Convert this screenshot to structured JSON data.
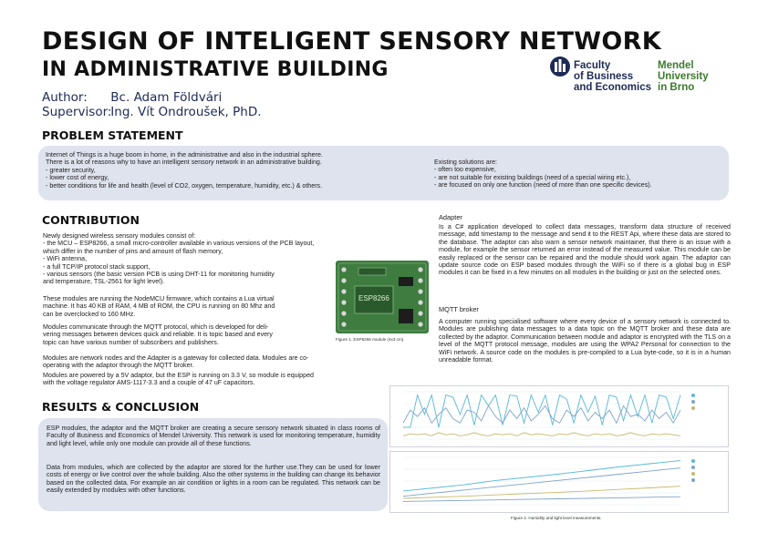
{
  "header": {
    "title_line1": "DESIGN OF INTELIGENT SENSORY NETWORK",
    "title_line2": "IN ADMINISTRATIVE BUILDING",
    "author_key": "Author:",
    "author_val": "Bc. Adam Földvári",
    "supervisor_key": "Supervisor:",
    "supervisor_val": "Ing. Vít Ondroušek, PhD."
  },
  "logos": {
    "faculty": [
      "Faculty",
      "of Business",
      "and Economics"
    ],
    "university": [
      "Mendel",
      "University",
      "in Brno"
    ]
  },
  "problem": {
    "heading": "PROBLEM STATEMENT",
    "left": [
      "Internet of Things is a huge boom in home, in the administrative and also in the industrial sphere.",
      "There is a lot of reasons why to have an intelligent sensory network in an administrative building.",
      "- greater security,",
      "- lower cost of energy,",
      "- better conditions for life and health (level of CO2, oxygen, temperature, humidity, etc.) & others."
    ],
    "right": [
      "Existing solutions are:",
      "- often too expensive,",
      "- are not suitable for existing buildings (need of a special wiring etc.),",
      "- are focused on only one function (need of more than one specific devices)."
    ]
  },
  "contribution": {
    "heading": "CONTRIBUTION",
    "list1": [
      "Newly designed wireless sensory modules consist of:",
      "- the MCU – ESP8266, a small micro-controller available in various versions of the PCB layout,",
      "which differ in the number of pins and amount of flash memory,",
      "- WiFi antenna,",
      "- a full TCP/IP protocol stack support,",
      "- various sensors (the basic version PCB is using DHT-11 for monitoring humidity",
      "and temperature, TSL-2561 for light level)."
    ],
    "para2": [
      "These modules are running the NodeMCU firmware, which contains a Lua virtual",
      "machine. It has 40 KB of RAM, 4 MB of ROM, the CPU is running on 80 Mhz and",
      "can be overclocked to 160 MHz."
    ],
    "para3": [
      "Modules communicate through the MQTT protocol, which is developed for deli-",
      "vering messages between devices quick and reliable. It is topic based and every",
      "topic can have various number of subscribers and publishers."
    ],
    "para4": [
      "Modules are network nodes and the Adapter is a gateway for collected data. Modules are co-",
      "operating with the adaptor through the MQTT broker."
    ],
    "para5": [
      "Modules are powered by a 5V adaptor, but the ESP is running on 3.3 V, so module is equipped",
      "with the voltage regulator AMS-1117-3.3 and a couple of 47 uF capacitors."
    ],
    "figure_caption": "Figure 1. ESP8266 module (4x3 cm).",
    "pcb_label": "ESP8266"
  },
  "results": {
    "heading": "RESULTS & CONCLUSION",
    "para1": "ESP modules, the adaptor and the MQTT broker are creating a secure sensory network situated in class rooms of Faculty of Business and Economics of Mendel University. This network is used for monitoring temperature, humidity and light level, while only one module can provide all of these functions.",
    "para2": "Data from modules, which are collected by the adaptor are stored for the further use.They can be used for lower costs of energy or live control over the whole building. Also the other systems in the building can change its behavior based on the collected data. For example an air condition or lights in a room can be regulated. This network can be easily extended by modules with other functions."
  },
  "adapter": {
    "heading": "Adapter",
    "text": "Is a C# application developed to collect data messages, transform data structure of received message, add timestamp to the message and send it to the REST Api, where these data are stored to the database. The adaptor can also warn a sensor network maintainer, that there is an issue with a module, for example the sensor returned an error instead of the measured value. This module can be easily replaced or the sensor can be repaired and the module should work again. The adaptor can update source code on ESP based modules through the WiFi so if there is a global bug in ESP modules it can be fixed in a few minutes on all modules in the building or just on the selected ones."
  },
  "mqtt": {
    "heading": "MQTT broker",
    "text": "A computer running specialised software where every device of a sensory network is connected to. Modules are publishing data messages to a data topic on the MQTT broker and these data are collected by the adaptor. Communication between module and adaptor is encrypted with the TLS on a level of the MQTT protocol message, modules are using the WPA2 Personal for connection to the WiFi network. A source code on the modules is pre-compiled to a Lua byte-code, so it is in a human unreadable format."
  },
  "figure2_caption": "Figure 2. Humidity and light level measurements.",
  "colors": {
    "band": "#dfe3ee",
    "title": "#111111",
    "author": "#1d2a55",
    "logo_blue": "#1d2a55",
    "logo_green": "#3b7a2e",
    "series1": "#58b9d6",
    "series2": "#7fa4c8",
    "series3": "#c7b86a"
  },
  "chart_data": [
    {
      "type": "line",
      "series": [
        {
          "values": [
            14,
            14,
            44,
            26,
            44,
            14,
            44,
            42,
            26,
            44,
            16,
            44,
            34,
            44,
            16,
            44,
            43,
            18,
            44,
            28,
            44,
            16,
            44,
            40,
            18,
            44,
            28,
            43,
            16,
            44,
            42,
            20,
            44,
            24,
            44,
            18,
            44,
            42,
            22,
            44
          ]
        },
        {
          "values": [
            18,
            30,
            24,
            32,
            18,
            26,
            32,
            22,
            18,
            30,
            28,
            20,
            34,
            24,
            18,
            30,
            22,
            32,
            20,
            26,
            34,
            22,
            18,
            30,
            24,
            32,
            20,
            28,
            22,
            30,
            18,
            34,
            24,
            26,
            20,
            30,
            22,
            28,
            18,
            30
          ]
        },
        {
          "values": [
            6,
            8,
            7,
            8,
            6,
            9,
            7,
            8,
            6,
            7,
            9,
            7,
            6,
            8,
            7,
            8,
            6,
            9,
            7,
            8,
            7,
            6,
            8,
            7,
            9,
            7,
            6,
            8,
            7,
            8,
            6,
            7,
            9,
            7,
            6,
            8,
            7,
            8,
            7,
            6
          ]
        }
      ]
    },
    {
      "type": "line",
      "series": [
        {
          "values": [
            300,
            360,
            420,
            500,
            560,
            620,
            690,
            760,
            820,
            880
          ]
        },
        {
          "values": [
            200,
            260,
            320,
            380,
            440,
            500,
            560,
            620,
            680,
            740
          ]
        },
        {
          "values": [
            160,
            180,
            200,
            225,
            250,
            275,
            300,
            330,
            360,
            390
          ]
        },
        {
          "values": [
            100,
            110,
            120,
            130,
            140,
            150,
            160,
            170,
            180,
            190
          ]
        }
      ]
    }
  ]
}
